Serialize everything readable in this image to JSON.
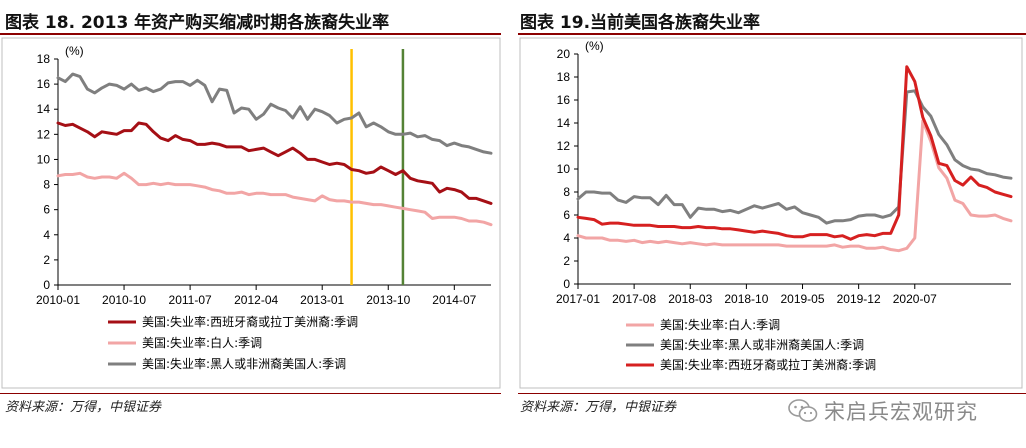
{
  "left": {
    "title": "图表 18. 2013 年资产购买缩减时期各族裔失业率",
    "source": "资料来源：万得，中银证券"
  },
  "right": {
    "title": "图表 19.当前美国各族裔失业率",
    "source": "资料来源：万得，中银证券"
  },
  "watermark": {
    "text": "宋启兵宏观研究",
    "icon": "wechat-icon"
  },
  "colors": {
    "dark_red": "#a50f15",
    "pink": "#f2a5a5",
    "gray": "#7f7f7f",
    "bright_red": "#d62020",
    "yellow": "#ffc000",
    "green": "#548235",
    "title_rule": "#8b0000"
  },
  "chart_data": [
    {
      "type": "line",
      "unit_label": "(%)",
      "ylim": [
        0,
        18
      ],
      "yticks": [
        0,
        2,
        4,
        6,
        8,
        10,
        12,
        14,
        16,
        18
      ],
      "x_start": "2010-01",
      "x_count": 60,
      "xtick_labels": [
        "2010-01",
        "2010-10",
        "2011-07",
        "2012-04",
        "2013-01",
        "2013-10",
        "2014-07"
      ],
      "xtick_index": [
        0,
        9,
        18,
        27,
        36,
        45,
        54
      ],
      "vlines": [
        {
          "x": "2013-05",
          "color": "#ffc000"
        },
        {
          "x": "2013-12",
          "color": "#548235"
        }
      ],
      "legend": [
        "美国:失业率:西班牙裔或拉丁美洲裔:季调",
        "美国:失业率:白人:季调",
        "美国:失业率:黑人或非洲裔美国人:季调"
      ],
      "series": [
        {
          "name": "美国:失业率:西班牙裔或拉丁美洲裔:季调",
          "color": "#a50f15",
          "width": 3,
          "values": [
            12.9,
            12.7,
            12.8,
            12.5,
            12.2,
            11.8,
            12.2,
            12.1,
            12.0,
            12.3,
            12.3,
            12.9,
            12.8,
            12.2,
            11.7,
            11.5,
            11.9,
            11.6,
            11.5,
            11.2,
            11.2,
            11.3,
            11.2,
            11.0,
            11.0,
            11.0,
            10.7,
            10.8,
            10.9,
            10.6,
            10.3,
            10.6,
            10.9,
            10.5,
            10.0,
            10.0,
            9.8,
            9.6,
            9.7,
            9.6,
            9.2,
            9.1,
            8.9,
            9.0,
            9.4,
            9.1,
            8.8,
            9.1,
            8.5,
            8.3,
            8.2,
            8.1,
            7.4,
            7.7,
            7.6,
            7.4,
            6.9,
            6.9,
            6.7,
            6.5
          ]
        },
        {
          "name": "美国:失业率:白人:季调",
          "color": "#f2a5a5",
          "width": 3,
          "values": [
            8.7,
            8.8,
            8.8,
            8.9,
            8.6,
            8.5,
            8.6,
            8.6,
            8.5,
            8.9,
            8.5,
            8.0,
            8.0,
            8.1,
            8.0,
            8.1,
            8.0,
            8.0,
            8.0,
            7.9,
            7.8,
            7.6,
            7.5,
            7.3,
            7.3,
            7.4,
            7.2,
            7.3,
            7.3,
            7.2,
            7.2,
            7.2,
            7.0,
            6.9,
            6.8,
            6.7,
            7.1,
            6.8,
            6.7,
            6.7,
            6.6,
            6.6,
            6.5,
            6.4,
            6.4,
            6.3,
            6.2,
            6.1,
            6.0,
            5.9,
            5.8,
            5.3,
            5.4,
            5.4,
            5.4,
            5.3,
            5.1,
            5.1,
            5.0,
            4.8
          ]
        },
        {
          "name": "美国:失业率:黑人或非洲裔美国人:季调",
          "color": "#7f7f7f",
          "width": 3,
          "values": [
            16.5,
            16.2,
            16.8,
            16.6,
            15.6,
            15.3,
            15.7,
            16.0,
            15.9,
            15.6,
            16.0,
            15.5,
            15.7,
            15.4,
            15.6,
            16.1,
            16.2,
            16.2,
            15.9,
            16.3,
            15.9,
            14.6,
            15.6,
            15.5,
            13.7,
            14.1,
            14.0,
            13.2,
            13.6,
            14.4,
            14.1,
            13.9,
            13.3,
            14.2,
            13.2,
            14.0,
            13.8,
            13.5,
            12.9,
            13.2,
            13.3,
            13.7,
            12.6,
            12.9,
            12.6,
            12.2,
            12.0,
            12.0,
            12.1,
            11.8,
            11.9,
            11.6,
            11.5,
            11.1,
            11.3,
            11.1,
            11.0,
            10.8,
            10.6,
            10.5
          ]
        }
      ]
    },
    {
      "type": "line",
      "unit_label": "(%)",
      "ylim": [
        0,
        20
      ],
      "yticks": [
        0,
        2,
        4,
        6,
        8,
        10,
        12,
        14,
        16,
        18,
        20
      ],
      "x_start": "2017-01",
      "x_count": 55,
      "xtick_labels": [
        "2017-01",
        "2017-08",
        "2018-03",
        "2018-10",
        "2019-05",
        "2019-12",
        "2020-07"
      ],
      "xtick_index": [
        0,
        7,
        14,
        21,
        28,
        35,
        42
      ],
      "legend": [
        "美国:失业率:白人:季调",
        "美国:失业率:黑人或非洲裔美国人:季调",
        "美国:失业率:西班牙裔或拉丁美洲裔:季调"
      ],
      "series": [
        {
          "name": "美国:失业率:白人:季调",
          "color": "#f2a5a5",
          "width": 3,
          "values": [
            4.2,
            4.0,
            4.0,
            4.0,
            3.8,
            3.8,
            3.7,
            3.8,
            3.6,
            3.7,
            3.6,
            3.7,
            3.6,
            3.5,
            3.6,
            3.5,
            3.4,
            3.5,
            3.4,
            3.4,
            3.4,
            3.4,
            3.4,
            3.4,
            3.4,
            3.4,
            3.3,
            3.3,
            3.3,
            3.3,
            3.3,
            3.3,
            3.4,
            3.2,
            3.3,
            3.3,
            3.1,
            3.1,
            3.2,
            3.0,
            2.9,
            3.1,
            4.0,
            14.2,
            12.4,
            10.1,
            9.2,
            7.3,
            7.0,
            6.0,
            5.9,
            5.9,
            6.0,
            5.7,
            5.5
          ]
        },
        {
          "name": "美国:失业率:黑人或非洲裔美国人:季调",
          "color": "#7f7f7f",
          "width": 3,
          "values": [
            7.4,
            8.0,
            8.0,
            7.9,
            7.9,
            7.3,
            7.1,
            7.6,
            7.5,
            7.5,
            6.9,
            7.7,
            6.9,
            6.9,
            5.8,
            6.6,
            6.5,
            6.5,
            6.3,
            6.4,
            6.2,
            6.5,
            6.8,
            6.6,
            6.8,
            7.0,
            6.5,
            6.7,
            6.2,
            6.0,
            5.8,
            5.3,
            5.5,
            5.5,
            5.6,
            5.9,
            6.0,
            6.0,
            5.8,
            6.0,
            6.7,
            16.7,
            16.8,
            15.4,
            14.6,
            13.0,
            12.1,
            10.8,
            10.3,
            10.0,
            9.9,
            9.6,
            9.5,
            9.3,
            9.2
          ]
        },
        {
          "name": "美国:失业率:西班牙裔或拉丁美洲裔:季调",
          "color": "#d62020",
          "width": 3,
          "values": [
            5.8,
            5.7,
            5.6,
            5.2,
            5.3,
            5.3,
            5.2,
            5.1,
            5.1,
            5.1,
            5.0,
            5.0,
            5.0,
            4.9,
            4.9,
            5.0,
            4.9,
            4.9,
            4.8,
            4.8,
            4.7,
            4.6,
            4.5,
            4.6,
            4.5,
            4.4,
            4.2,
            4.1,
            4.1,
            4.3,
            4.3,
            4.3,
            4.1,
            4.2,
            3.9,
            4.2,
            4.3,
            4.2,
            4.4,
            4.4,
            6.0,
            18.9,
            17.6,
            14.5,
            12.9,
            10.5,
            10.3,
            9.0,
            8.6,
            9.3,
            8.6,
            8.4,
            8.0,
            7.8,
            7.6
          ]
        }
      ]
    }
  ]
}
